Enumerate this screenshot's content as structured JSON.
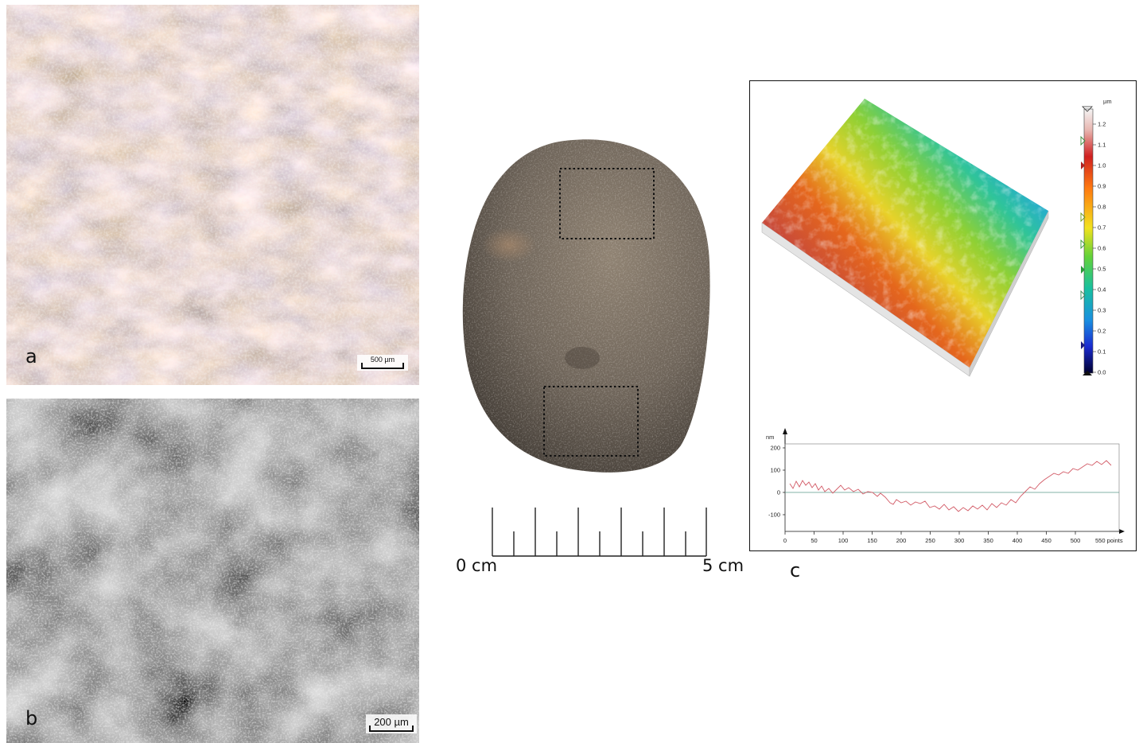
{
  "panels": {
    "a": {
      "letter": "a",
      "scale_label": "500 µm",
      "palette": [
        "#d8c6ab",
        "#7d848e",
        "#c58d53",
        "#e8e2d8"
      ]
    },
    "b": {
      "letter": "b",
      "scale_label": "200 µm",
      "palette": [
        "#3a3a3a",
        "#6e6e6e",
        "#b4b4b4",
        "#e2e2e2"
      ]
    },
    "pebble": {
      "ruler": {
        "start_label": "0 cm",
        "end_label": "5 cm"
      },
      "sampled_areas": 2
    },
    "c": {
      "letter": "c",
      "colorbar": {
        "unit": "µm",
        "ticks": [
          "1.2",
          "1.1",
          "1.0",
          "0.9",
          "0.8",
          "0.7",
          "0.6",
          "0.5",
          "0.4",
          "0.3",
          "0.2",
          "0.1",
          "0.0"
        ]
      },
      "profile": {
        "y_unit": "nm",
        "y_ticks": [
          "200",
          "100",
          "0",
          "-100"
        ],
        "x_ticks": [
          "0",
          "50",
          "100",
          "150",
          "200",
          "250",
          "300",
          "350",
          "400",
          "450",
          "500"
        ],
        "x_end_label": "550 points"
      }
    }
  }
}
